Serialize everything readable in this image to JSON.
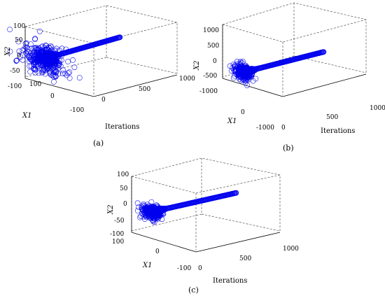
{
  "chart_data": [
    {
      "panel_caption": "(a)",
      "type": "scatter",
      "description_axes": {
        "x": "Iterations",
        "y": "X1",
        "z": "X2"
      },
      "xlabel": "Iterations",
      "ylabel_x1": "X1",
      "zlabel_x2": "X2",
      "x_ticks": [
        "0",
        "500",
        "1000"
      ],
      "x1_ticks": [
        "100",
        "0",
        "-100"
      ],
      "x2_ticks": [
        "100",
        "50",
        "0",
        "-50",
        "-100"
      ],
      "xlim": [
        0,
        1000
      ],
      "x1_lim": [
        -100,
        100
      ],
      "x2_lim": [
        -100,
        100
      ],
      "initial_spread": 100,
      "converged_value": [
        0,
        0
      ],
      "iterations_shown": 1000,
      "grid": false
    },
    {
      "panel_caption": "(b)",
      "type": "scatter",
      "xlabel": "Iterations",
      "ylabel_x1": "X1",
      "zlabel_x2": "X2",
      "x_ticks": [
        "0",
        "500",
        "1000"
      ],
      "x1_ticks": [
        "0",
        "-1000"
      ],
      "x2_ticks": [
        "1000",
        "500",
        "0",
        "-500",
        "-1000"
      ],
      "xlim": [
        0,
        1000
      ],
      "x1_lim": [
        -1000,
        1000
      ],
      "x2_lim": [
        -1000,
        1000
      ],
      "initial_spread": 400,
      "converged_value": [
        0,
        0
      ],
      "iterations_shown": 1000,
      "grid": false
    },
    {
      "panel_caption": "(c)",
      "type": "scatter",
      "xlabel": "Iterations",
      "ylabel_x1": "X1",
      "zlabel_x2": "X2",
      "x_ticks": [
        "0",
        "500",
        "1000"
      ],
      "x1_ticks": [
        "100",
        "0",
        "-100"
      ],
      "x2_ticks": [
        "100",
        "50",
        "0",
        "-50",
        "-100"
      ],
      "xlim": [
        0,
        1000
      ],
      "x1_lim": [
        -100,
        100
      ],
      "x2_lim": [
        -100,
        100
      ],
      "initial_spread": 40,
      "converged_value": [
        0,
        -50
      ],
      "iterations_shown": 1000,
      "grid": false
    }
  ],
  "colors": {
    "marker": "#0000ee",
    "axis": "#000000",
    "box": "#555555"
  }
}
